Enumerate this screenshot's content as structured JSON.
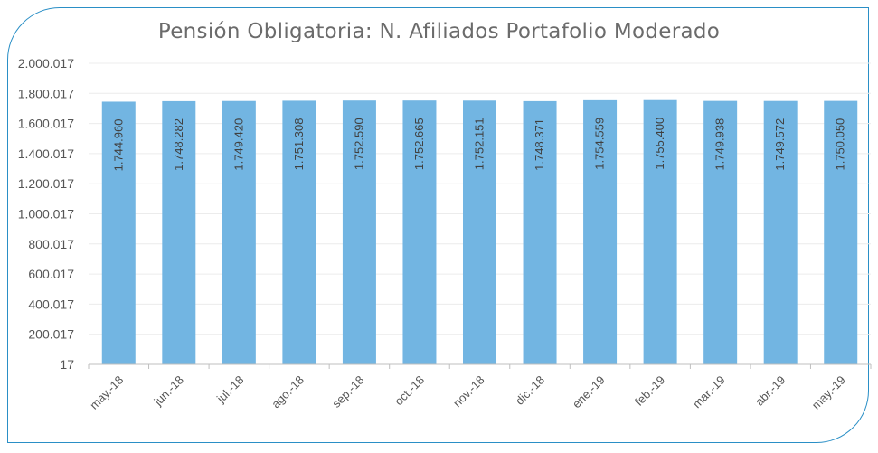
{
  "chart_data": {
    "type": "bar",
    "title": "Pensión Obligatoria: N. Afiliados Portafolio Moderado",
    "xlabel": "",
    "ylabel": "",
    "categories": [
      "may.-18",
      "jun.-18",
      "jul.-18",
      "ago.-18",
      "sep.-18",
      "oct.-18",
      "nov.-18",
      "dic.-18",
      "ene.-19",
      "feb.-19",
      "mar.-19",
      "abr.-19",
      "may.-19"
    ],
    "values": [
      1744960,
      1748282,
      1749420,
      1751308,
      1752590,
      1752665,
      1752151,
      1748371,
      1754559,
      1755400,
      1749938,
      1749572,
      1750050
    ],
    "value_labels": [
      "1.744.960",
      "1.748.282",
      "1.749.420",
      "1.751.308",
      "1.752.590",
      "1.752.665",
      "1.752.151",
      "1.748.371",
      "1.754.559",
      "1.755.400",
      "1.749.938",
      "1.749.572",
      "1.750.050"
    ],
    "ylim": [
      17,
      2000017
    ],
    "yticks": [
      17,
      200017,
      400017,
      600017,
      800017,
      1000017,
      1200017,
      1400017,
      1600017,
      1800017,
      2000017
    ],
    "ytick_labels": [
      "17",
      "200.017",
      "400.017",
      "600.017",
      "800.017",
      "1.000.017",
      "1.200.017",
      "1.400.017",
      "1.600.017",
      "1.800.017",
      "2.000.017"
    ],
    "grid": true,
    "legend": "none",
    "bar_color": "#72b5e2"
  }
}
